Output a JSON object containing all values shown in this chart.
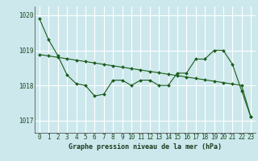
{
  "title": "Graphe pression niveau de la mer (hPa)",
  "background_color": "#cce8ed",
  "grid_color": "#ffffff",
  "line_color": "#1a5c1a",
  "xlim": [
    -0.5,
    23.5
  ],
  "ylim": [
    1016.65,
    1020.25
  ],
  "yticks": [
    1017,
    1018,
    1019,
    1020
  ],
  "xticks": [
    0,
    1,
    2,
    3,
    4,
    5,
    6,
    7,
    8,
    9,
    10,
    11,
    12,
    13,
    14,
    15,
    16,
    17,
    18,
    19,
    20,
    21,
    22,
    23
  ],
  "data_line": [
    1019.9,
    1019.3,
    1018.85,
    1018.3,
    1018.05,
    1018.0,
    1017.7,
    1017.75,
    1018.15,
    1018.15,
    1018.0,
    1018.15,
    1018.15,
    1018.0,
    1018.0,
    1018.35,
    1018.35,
    1018.75,
    1018.75,
    1019.0,
    1019.0,
    1018.6,
    1017.85,
    1017.1
  ],
  "trend_line": [
    1018.88,
    1018.84,
    1018.8,
    1018.76,
    1018.72,
    1018.68,
    1018.64,
    1018.6,
    1018.56,
    1018.52,
    1018.48,
    1018.44,
    1018.4,
    1018.36,
    1018.32,
    1018.28,
    1018.24,
    1018.2,
    1018.16,
    1018.12,
    1018.08,
    1018.04,
    1018.0,
    1017.1
  ],
  "xlabel_fontsize": 6.0,
  "ylabel_fontsize": 6.0,
  "tick_fontsize": 5.5,
  "marker_size": 2.0,
  "line_width": 0.8
}
